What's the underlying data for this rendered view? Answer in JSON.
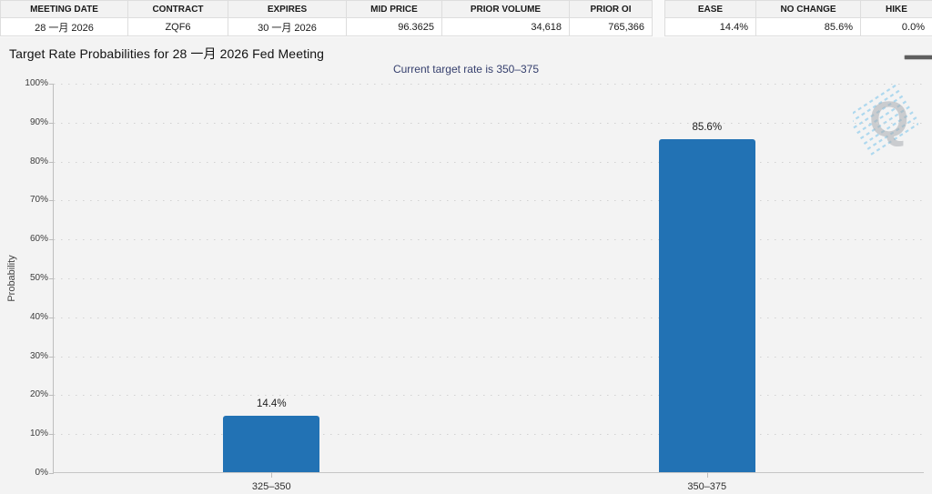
{
  "summary_table": {
    "headers": [
      "MEETING DATE",
      "CONTRACT",
      "EXPIRES",
      "MID PRICE",
      "PRIOR VOLUME",
      "PRIOR OI"
    ],
    "values": [
      "28 一月 2026",
      "ZQF6",
      "30 一月 2026",
      "96.3625",
      "34,618",
      "765,366"
    ]
  },
  "probability_table": {
    "headers": [
      "EASE",
      "NO CHANGE",
      "HIKE"
    ],
    "values": [
      "14.4%",
      "85.6%",
      "0.0%"
    ]
  },
  "header": {
    "title": "Target Rate Probabilities for 28 一月 2026 Fed Meeting",
    "subtitle": "Current target rate is 350–375",
    "menu_icon": "hamburger-menu",
    "watermark_letter": "Q"
  },
  "chart_data": {
    "type": "bar",
    "title": "Target Rate Probabilities for 28 一月 2026 Fed Meeting",
    "subtitle": "Current target rate is 350–375",
    "categories": [
      "325–350",
      "350–375"
    ],
    "values": [
      14.4,
      85.6
    ],
    "value_labels": [
      "14.4%",
      "85.6%"
    ],
    "xlabel": "",
    "ylabel": "Probability",
    "ylim": [
      0,
      100
    ],
    "ytick_step": 10,
    "ytick_labels": [
      "0%",
      "10%",
      "20%",
      "30%",
      "40%",
      "50%",
      "60%",
      "70%",
      "80%",
      "90%",
      "100%"
    ],
    "grid": "dotted-horizontal",
    "legend": "none",
    "bar_color": "#2272b4"
  }
}
